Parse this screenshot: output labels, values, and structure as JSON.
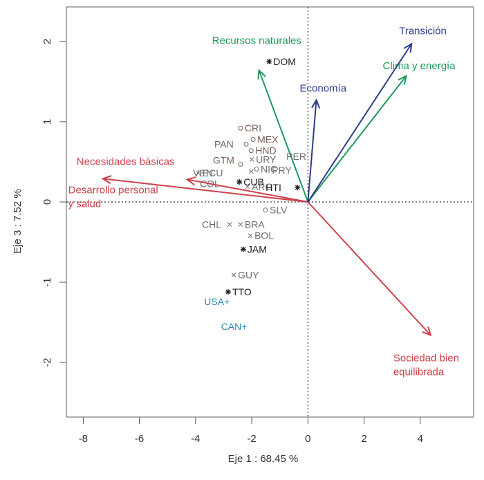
{
  "chart_data": {
    "type": "scatter",
    "subtype": "biplot",
    "title": "",
    "xlabel": "Eje 1 : 68.45 %",
    "ylabel": "Eje 3 : 7.52 %",
    "xlim": [
      -8.6,
      5.9
    ],
    "ylim": [
      -2.68,
      2.43
    ],
    "xticks": [
      -8,
      -6,
      -4,
      -2,
      0,
      2,
      4
    ],
    "yticks": [
      -2,
      -1,
      0,
      1,
      2
    ],
    "grid": false,
    "reference_lines": {
      "x": 0,
      "y": 0,
      "style": "dotted"
    },
    "colors": {
      "red": "#d0404a",
      "green": "#1a9a5a",
      "navy": "#2e3b8a",
      "brown": "#7a6058",
      "gray": "#6e6e6e",
      "black": "#1e1e1e",
      "blue": "#2a8ab0"
    },
    "vectors": [
      {
        "name": "Necesidades básicas",
        "x": -7.3,
        "y": 0.29,
        "color": "red",
        "label_lines": [
          "Necesidades básicas"
        ]
      },
      {
        "name": "Desarrollo personal y salud",
        "x": -4.3,
        "y": 0.28,
        "color": "red",
        "label_lines": [
          "Desarrollo personal",
          "y salud"
        ]
      },
      {
        "name": "Sociedad bien equilibrada",
        "x": 4.37,
        "y": -1.66,
        "color": "red",
        "label_lines": [
          "Sociedad bien",
          "equilibrada"
        ]
      },
      {
        "name": "Recursos naturales",
        "x": -1.74,
        "y": 1.64,
        "color": "green",
        "label_lines": [
          "Recursos naturales"
        ]
      },
      {
        "name": "Clima y energía",
        "x": 3.5,
        "y": 1.57,
        "color": "green",
        "label_lines": [
          "Clima y energía"
        ]
      },
      {
        "name": "Transición",
        "x": 3.69,
        "y": 1.97,
        "color": "navy",
        "label_lines": [
          "Transición"
        ]
      },
      {
        "name": "Economía",
        "x": 0.3,
        "y": 1.27,
        "color": "navy",
        "label_lines": [
          "Economía"
        ]
      }
    ],
    "points": [
      {
        "label": "CRI",
        "x": -2.4,
        "y": 0.92,
        "marker": "circle",
        "color": "brown"
      },
      {
        "label": "MEX",
        "x": -1.95,
        "y": 0.78,
        "marker": "circle",
        "color": "brown"
      },
      {
        "label": "PAN",
        "x": -2.2,
        "y": 0.72,
        "marker": "circle",
        "color": "brown"
      },
      {
        "label": "HND",
        "x": -2.02,
        "y": 0.64,
        "marker": "circle",
        "color": "brown"
      },
      {
        "label": "GTM",
        "x": -2.4,
        "y": 0.47,
        "marker": "circle",
        "color": "brown"
      },
      {
        "label": "NIC",
        "x": -1.83,
        "y": 0.41,
        "marker": "circle",
        "color": "gray"
      },
      {
        "label": "SLV",
        "x": -1.51,
        "y": -0.1,
        "marker": "circle",
        "color": "gray"
      },
      {
        "label": "PER",
        "x": -0.62,
        "y": 0.57,
        "marker": "none",
        "color": "gray"
      },
      {
        "label": "URY",
        "x": -2.0,
        "y": 0.53,
        "marker": "cross",
        "color": "gray"
      },
      {
        "label": "PRY",
        "x": -2.02,
        "y": 0.38,
        "marker": "cross",
        "color": "gray"
      },
      {
        "label": "VEN",
        "x": -3.5,
        "y": 0.36,
        "marker": "none",
        "color": "gray"
      },
      {
        "label": "ECU",
        "x": -3.9,
        "y": 0.36,
        "marker": "cross",
        "color": "gray"
      },
      {
        "label": "COL",
        "x": -3.7,
        "y": 0.23,
        "marker": "none",
        "color": "gray"
      },
      {
        "label": "ARG",
        "x": -2.15,
        "y": 0.19,
        "marker": "cross",
        "color": "gray"
      },
      {
        "label": "CHL",
        "x": -2.79,
        "y": -0.28,
        "marker": "cross",
        "color": "gray"
      },
      {
        "label": "BRA",
        "x": -2.4,
        "y": -0.28,
        "marker": "cross",
        "color": "gray"
      },
      {
        "label": "BOL",
        "x": -2.05,
        "y": -0.42,
        "marker": "cross",
        "color": "gray"
      },
      {
        "label": "GUY",
        "x": -2.64,
        "y": -0.91,
        "marker": "cross",
        "color": "gray"
      },
      {
        "label": "CUB",
        "x": -2.44,
        "y": 0.25,
        "marker": "star",
        "color": "black"
      },
      {
        "label": "HTI",
        "x": -0.37,
        "y": 0.18,
        "marker": "star",
        "color": "black"
      },
      {
        "label": "DOM",
        "x": -1.38,
        "y": 1.75,
        "marker": "star",
        "color": "black"
      },
      {
        "label": "JAM",
        "x": -2.3,
        "y": -0.59,
        "marker": "star",
        "color": "black"
      },
      {
        "label": "TTO",
        "x": -2.84,
        "y": -1.12,
        "marker": "star",
        "color": "black"
      },
      {
        "label": "USA+",
        "x": -3.3,
        "y": -1.24,
        "marker": "none",
        "color": "blue"
      },
      {
        "label": "CAN+",
        "x": -2.7,
        "y": -1.55,
        "marker": "none",
        "color": "blue"
      }
    ]
  }
}
